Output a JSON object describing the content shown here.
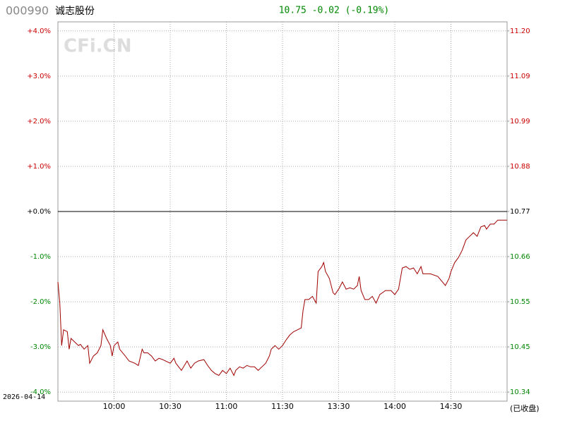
{
  "chart_data": {
    "type": "line",
    "code": "000990",
    "name": "诚志股份",
    "quote": "10.75 -0.02 (-0.19%)",
    "watermark": "CFi.CN",
    "date": "2026-04-14",
    "status": "(已收盘)",
    "up_color": "#cc0000",
    "down_color": "#008800",
    "flat_color": "#000000",
    "xlim": [
      0,
      240
    ],
    "xticks": [
      {
        "value": 30,
        "label": "10:00"
      },
      {
        "value": 60,
        "label": "10:30"
      },
      {
        "value": 90,
        "label": "11:00"
      },
      {
        "value": 120,
        "label": "11:30"
      },
      {
        "value": 150,
        "label": "13:30"
      },
      {
        "value": 180,
        "label": "14:00"
      },
      {
        "value": 210,
        "label": "14:30"
      }
    ],
    "ylim": [
      -4.2,
      4.2
    ],
    "yticks": [
      {
        "value": 4,
        "label": "+4.0%"
      },
      {
        "value": 3,
        "label": "+3.0%"
      },
      {
        "value": 2,
        "label": "+2.0%"
      },
      {
        "value": 1,
        "label": "+1.0%"
      },
      {
        "value": 0,
        "label": "+0.0%"
      },
      {
        "value": -1,
        "label": "-1.0%"
      },
      {
        "value": -2,
        "label": "-2.0%"
      },
      {
        "value": -3,
        "label": "-3.0%"
      },
      {
        "value": -4,
        "label": "-4.0%"
      }
    ],
    "y2lim": [
      10.31766,
      11.22234
    ],
    "y2ticks": [
      {
        "value": 11.2008,
        "label": "11.20"
      },
      {
        "value": 11.0931,
        "label": "11.09"
      },
      {
        "value": 10.9854,
        "label": "10.99"
      },
      {
        "value": 10.8777,
        "label": "10.88"
      },
      {
        "value": 10.77,
        "label": "10.77"
      },
      {
        "value": 10.6623,
        "label": "10.66"
      },
      {
        "value": 10.5546,
        "label": "10.55"
      },
      {
        "value": 10.4469,
        "label": "10.45"
      },
      {
        "value": 10.3392,
        "label": "10.34"
      }
    ],
    "grid": true,
    "x": [
      0,
      1,
      2,
      3,
      5,
      6,
      7,
      9,
      11,
      12,
      14,
      16,
      17,
      19,
      21,
      23,
      24,
      26,
      28,
      29,
      30,
      32,
      33,
      36,
      38,
      41,
      43,
      45,
      46,
      48,
      50,
      52,
      54,
      56,
      60,
      62,
      63,
      66,
      69,
      71,
      73,
      75,
      78,
      80,
      82,
      84,
      86,
      88,
      90,
      92,
      94,
      95,
      97,
      99,
      101,
      103,
      105,
      107,
      109,
      111,
      113,
      114,
      116,
      118,
      120,
      122,
      124,
      126,
      128,
      130,
      131,
      132,
      134,
      136,
      138,
      139,
      141,
      142,
      143,
      145,
      147,
      148,
      150,
      152,
      154,
      156,
      158,
      160,
      161,
      162,
      164,
      166,
      168,
      170,
      172,
      175,
      178,
      180,
      182,
      184,
      186,
      188,
      190,
      192,
      194,
      195,
      199,
      203,
      207,
      209,
      210,
      212,
      214,
      216,
      218,
      220,
      222,
      224,
      226,
      228,
      229,
      231,
      233,
      235,
      237,
      240
    ],
    "series": [
      {
        "name": "诚志股份",
        "color": "#a00000",
        "values": [
          -1.56,
          -2.03,
          -2.97,
          -2.62,
          -2.66,
          -3.05,
          -2.81,
          -2.89,
          -2.97,
          -2.94,
          -3.05,
          -2.97,
          -3.36,
          -3.2,
          -3.13,
          -2.97,
          -2.62,
          -2.81,
          -2.97,
          -3.2,
          -2.97,
          -2.89,
          -3.05,
          -3.2,
          -3.31,
          -3.36,
          -3.41,
          -3.05,
          -3.13,
          -3.13,
          -3.2,
          -3.31,
          -3.25,
          -3.28,
          -3.36,
          -3.25,
          -3.36,
          -3.52,
          -3.31,
          -3.47,
          -3.36,
          -3.31,
          -3.28,
          -3.41,
          -3.52,
          -3.59,
          -3.63,
          -3.52,
          -3.59,
          -3.47,
          -3.63,
          -3.52,
          -3.44,
          -3.47,
          -3.41,
          -3.44,
          -3.44,
          -3.52,
          -3.44,
          -3.36,
          -3.2,
          -3.05,
          -2.97,
          -3.05,
          -2.97,
          -2.84,
          -2.73,
          -2.66,
          -2.62,
          -2.58,
          -2.19,
          -1.95,
          -1.95,
          -1.88,
          -2.03,
          -1.33,
          -1.22,
          -1.13,
          -1.33,
          -1.48,
          -1.8,
          -1.84,
          -1.72,
          -1.56,
          -1.72,
          -1.69,
          -1.72,
          -1.64,
          -1.44,
          -1.75,
          -1.95,
          -1.95,
          -1.88,
          -2.03,
          -1.84,
          -1.75,
          -1.75,
          -1.84,
          -1.72,
          -1.25,
          -1.22,
          -1.28,
          -1.25,
          -1.38,
          -1.22,
          -1.38,
          -1.38,
          -1.44,
          -1.64,
          -1.48,
          -1.33,
          -1.13,
          -1.02,
          -0.86,
          -0.63,
          -0.55,
          -0.47,
          -0.55,
          -0.34,
          -0.31,
          -0.39,
          -0.28,
          -0.28,
          -0.19,
          -0.19,
          -0.19
        ]
      }
    ]
  }
}
